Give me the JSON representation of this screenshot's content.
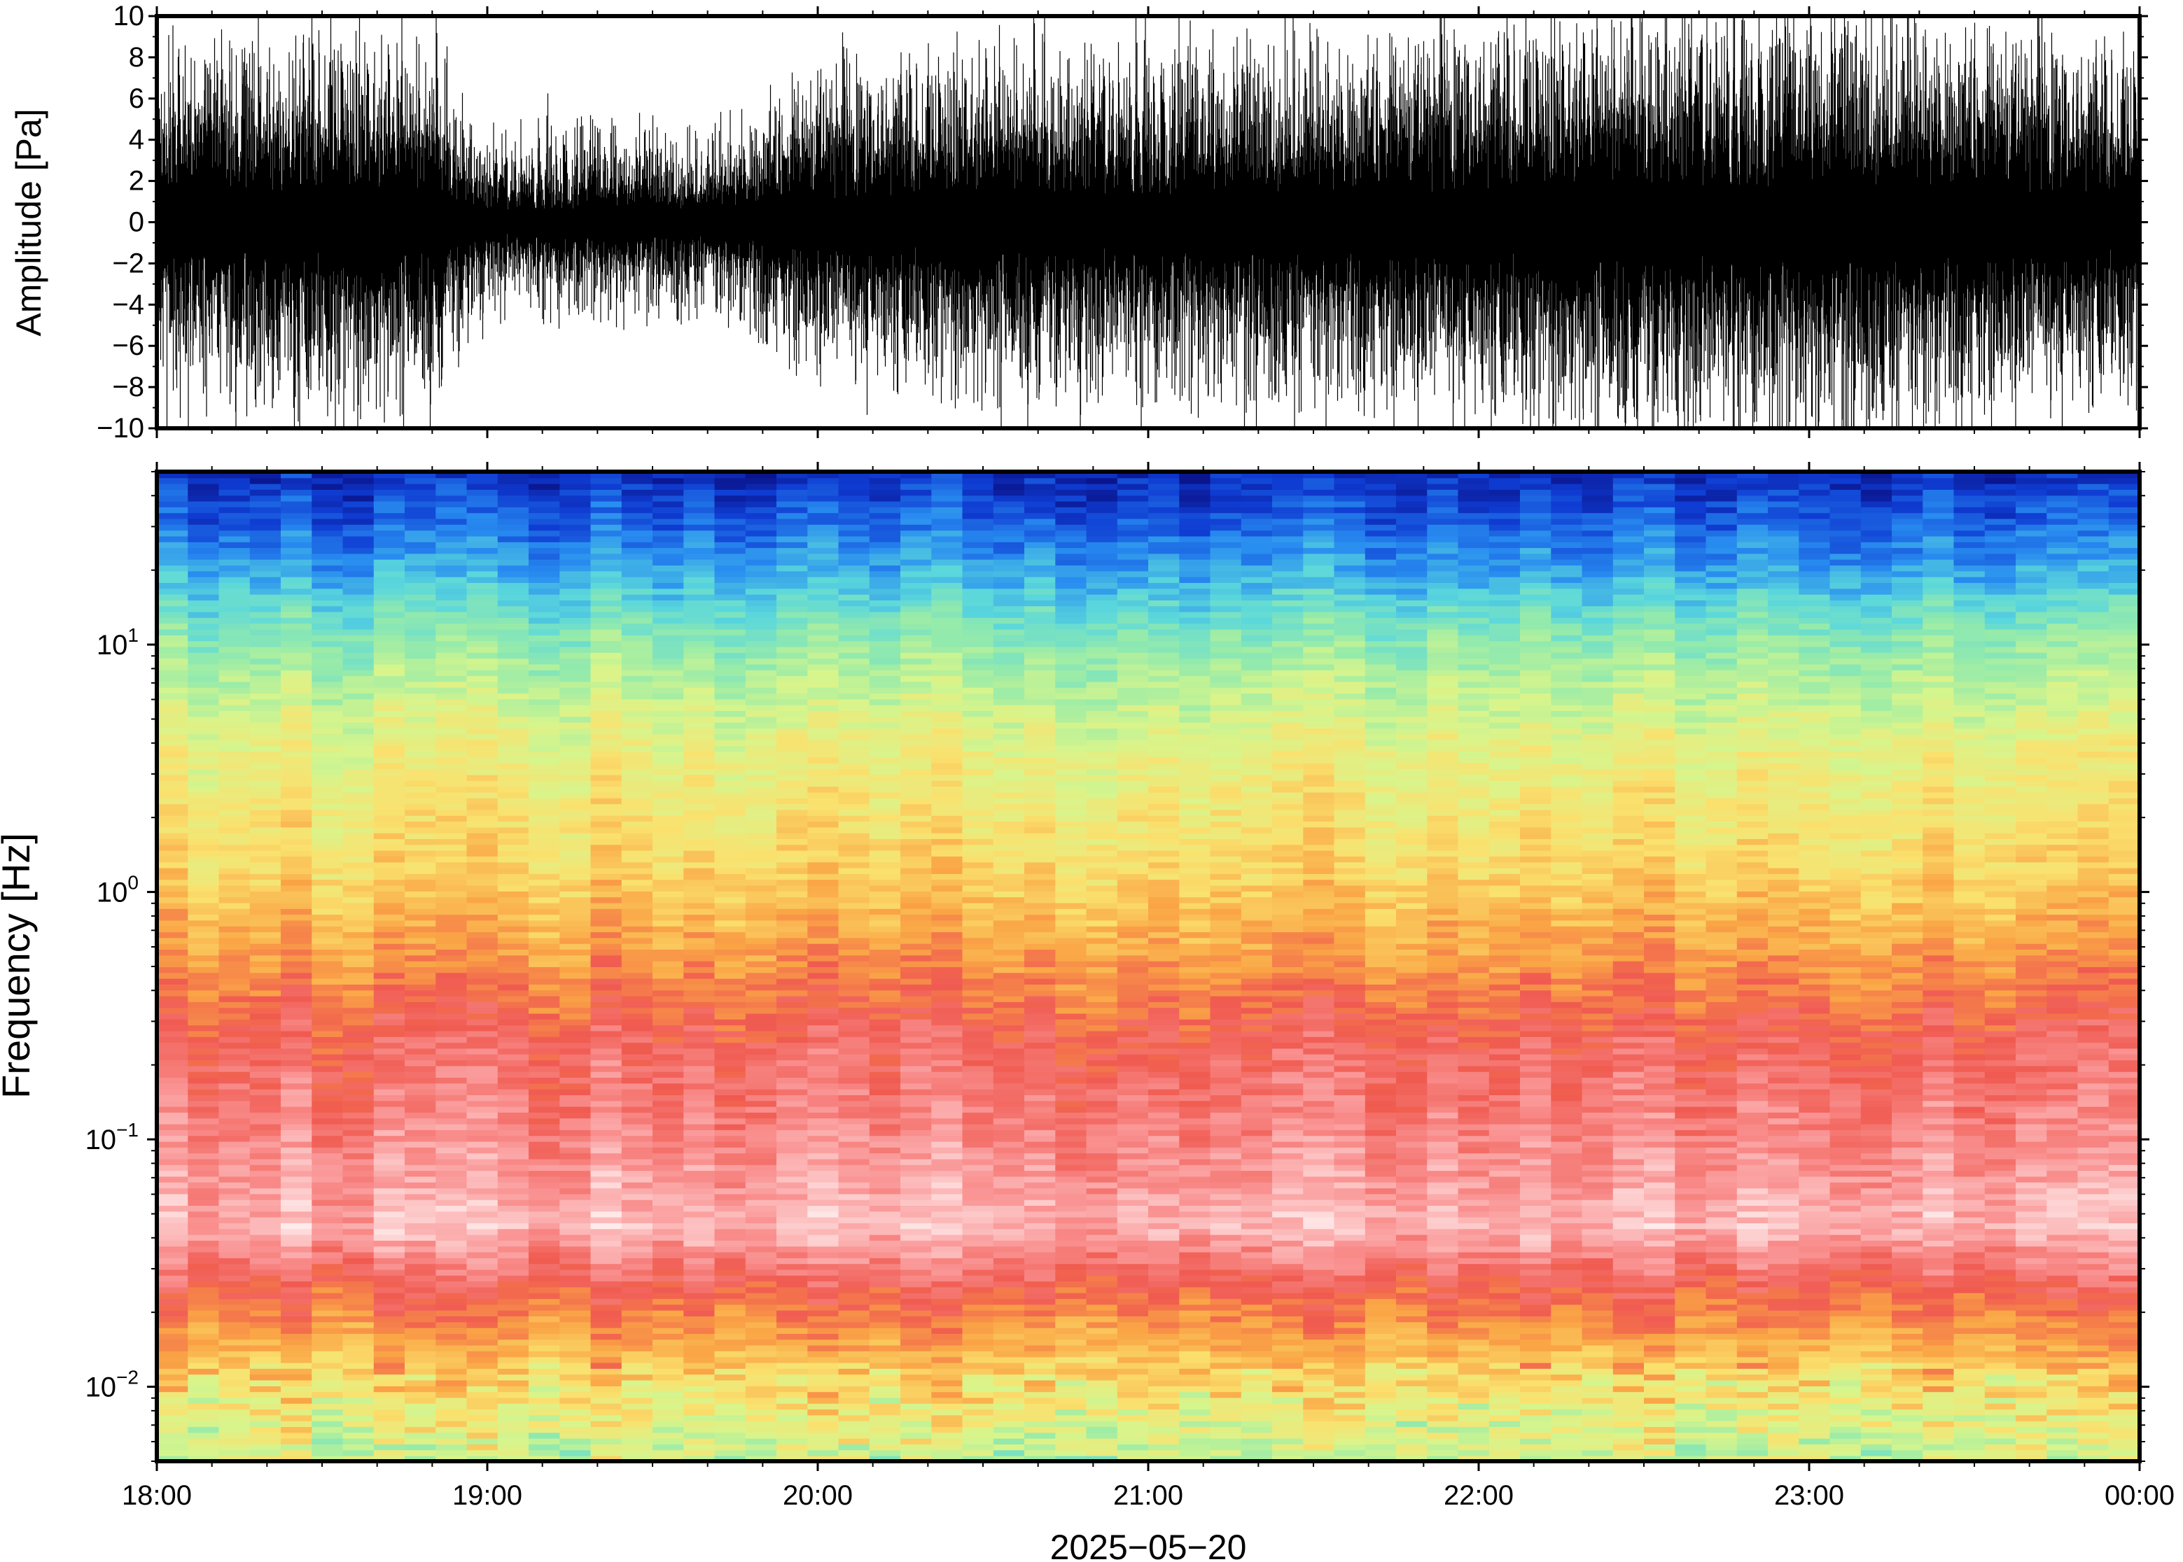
{
  "chart_data": [
    {
      "type": "line",
      "title": "",
      "ylabel": "Amplitude [Pa]",
      "xlabel": "",
      "ylim": [
        -10,
        10
      ],
      "yticks": [
        "10",
        "8",
        "6",
        "4",
        "2",
        "0",
        "−2",
        "−4",
        "−6",
        "−8",
        "−10"
      ],
      "ytick_values": [
        10,
        8,
        6,
        4,
        2,
        0,
        -2,
        -4,
        -6,
        -8,
        -10
      ],
      "xlim": [
        "18:00",
        "00:00"
      ],
      "grid": false,
      "series": [
        {
          "color": "#000000",
          "envelope_x": [
            "18:00",
            "18:30",
            "18:50",
            "19:00",
            "19:20",
            "19:40",
            "20:00",
            "20:30",
            "21:00",
            "21:30",
            "22:00",
            "22:30",
            "23:00",
            "23:30",
            "00:00"
          ],
          "envelope_typical": [
            3.5,
            4.0,
            3.5,
            1.5,
            1.8,
            1.5,
            3.0,
            3.5,
            3.5,
            3.5,
            4.0,
            4.5,
            4.5,
            4.0,
            3.5
          ],
          "envelope_peak": [
            8.5,
            9.5,
            9.0,
            5.0,
            5.5,
            5.0,
            8.0,
            9.0,
            9.0,
            9.0,
            9.5,
            10.0,
            10.0,
            9.5,
            9.0
          ]
        }
      ]
    },
    {
      "type": "heatmap",
      "title": "",
      "ylabel": "Frequency [Hz]",
      "xlabel": "2025−05−20",
      "y_scale": "log",
      "ylim": [
        0.005,
        50
      ],
      "ytick_values": [
        0.01,
        0.1,
        1,
        10
      ],
      "ytick_labels": [
        {
          "base": "10",
          "exp": "−2"
        },
        {
          "base": "10",
          "exp": "−1"
        },
        {
          "base": "10",
          "exp": "0"
        },
        {
          "base": "10",
          "exp": "1"
        }
      ],
      "xticks": [
        "18:00",
        "19:00",
        "20:00",
        "21:00",
        "22:00",
        "23:00",
        "00:00"
      ],
      "colormap": "rainbow (blue = low power, white/pink = peak power, green = low at lowest frequencies)",
      "grid": false,
      "dominant_bands": [
        {
          "freq_hz": [
            20,
            50
          ],
          "color": "blue"
        },
        {
          "freq_hz": [
            8,
            20
          ],
          "color": "cyan/green"
        },
        {
          "freq_hz": [
            1.5,
            8
          ],
          "color": "yellow/orange"
        },
        {
          "freq_hz": [
            0.3,
            1.0
          ],
          "color": "red"
        },
        {
          "freq_hz": [
            0.05,
            0.3
          ],
          "color": "pink/white"
        },
        {
          "freq_hz": [
            0.018,
            0.045
          ],
          "color": "red"
        },
        {
          "freq_hz": [
            0.005,
            0.015
          ],
          "color": "orange/yellow/green"
        }
      ]
    }
  ]
}
